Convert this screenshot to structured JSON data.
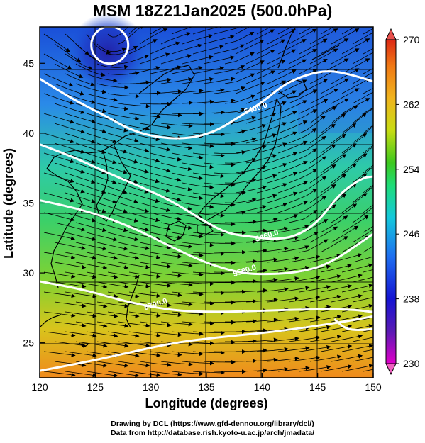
{
  "title": "MSM 18Z21Jan2025 (500.0hPa)",
  "chart_data": {
    "type": "map",
    "x_axis": {
      "label": "Longitude (degrees)",
      "range": [
        120,
        150
      ],
      "ticks": [
        120,
        125,
        130,
        135,
        140,
        145,
        150
      ]
    },
    "y_axis": {
      "label": "Latitude  (degrees)",
      "range": [
        22.5,
        47.6
      ],
      "ticks": [
        25,
        30,
        35,
        40,
        45
      ]
    },
    "colorbar": {
      "range": [
        230,
        270
      ],
      "ticks": [
        230,
        238,
        246,
        254,
        262,
        270
      ],
      "colors": [
        "#e000c8",
        "#5a1ab4",
        "#1414d2",
        "#1e6ef0",
        "#14c8dc",
        "#1edc78",
        "#3cc81e",
        "#c8dc14",
        "#f0b41e",
        "#f07814",
        "#dc2814"
      ]
    },
    "contours": [
      {
        "label": "5400.0",
        "points": [
          [
            120,
            43.9
          ],
          [
            122,
            42.9
          ],
          [
            124,
            42.0
          ],
          [
            126,
            41.2
          ],
          [
            128,
            40.3
          ],
          [
            130,
            39.8
          ],
          [
            132,
            39.6
          ],
          [
            134,
            39.7
          ],
          [
            136,
            40.2
          ],
          [
            138,
            41.2
          ],
          [
            140,
            42.2
          ],
          [
            142,
            43.5
          ],
          [
            144,
            44.2
          ],
          [
            146,
            44.5
          ],
          [
            148,
            44.2
          ],
          [
            150,
            43.7
          ]
        ],
        "label_at": [
          139.5,
          41.6
        ]
      },
      {
        "label": "5460.0",
        "points": [
          [
            120,
            39.2
          ],
          [
            123,
            38.3
          ],
          [
            126,
            37.2
          ],
          [
            129,
            36.2
          ],
          [
            132,
            35.1
          ],
          [
            135,
            33.6
          ],
          [
            137,
            32.8
          ],
          [
            139,
            32.6
          ],
          [
            141,
            32.4
          ],
          [
            143,
            32.6
          ],
          [
            145,
            33.6
          ],
          [
            147,
            35.7
          ],
          [
            149,
            36.8
          ],
          [
            150,
            36.9
          ]
        ],
        "label_at": [
          140.5,
          32.5
        ]
      },
      {
        "label": "5580.0",
        "points": [
          [
            120,
            35.2
          ],
          [
            124,
            34.5
          ],
          [
            128,
            33.4
          ],
          [
            132,
            31.8
          ],
          [
            135,
            30.7
          ],
          [
            138,
            30.0
          ],
          [
            140,
            29.9
          ],
          [
            143,
            30.0
          ],
          [
            146,
            30.6
          ],
          [
            150,
            32.8
          ]
        ],
        "label_at": [
          138.5,
          30.0
        ]
      },
      {
        "label": "5700.0",
        "points": [
          [
            120,
            29.4
          ],
          [
            124,
            28.8
          ],
          [
            128,
            27.9
          ],
          [
            132,
            27.3
          ],
          [
            136,
            27.2
          ],
          [
            140,
            27.3
          ],
          [
            144,
            27.4
          ],
          [
            148,
            27.4
          ],
          [
            150,
            27.2
          ]
        ],
        "label_at": [
          130.5,
          27.6
        ]
      },
      {
        "label": "",
        "points": [
          [
            120,
            23.0
          ],
          [
            124,
            23.6
          ],
          [
            128,
            24.3
          ],
          [
            132,
            25.0
          ],
          [
            136,
            25.4
          ],
          [
            140,
            25.7
          ],
          [
            144,
            26.1
          ],
          [
            148,
            26.6
          ],
          [
            150,
            26.9
          ]
        ],
        "label_at": null
      },
      {
        "label": "",
        "points": [
          [
            146.5,
            26.7
          ],
          [
            147.5,
            26.0
          ],
          [
            148.7,
            25.9
          ],
          [
            150,
            26.0
          ]
        ],
        "label_at": null
      }
    ],
    "low_center": {
      "lon": 126.3,
      "lat": 46.3
    }
  },
  "credit": {
    "line1": "Drawing by DCL (https://www.gfd-dennou.org/library/dcl/)",
    "line2": "Data from http://database.rish.kyoto-u.ac.jp/arch/jmadata/"
  }
}
